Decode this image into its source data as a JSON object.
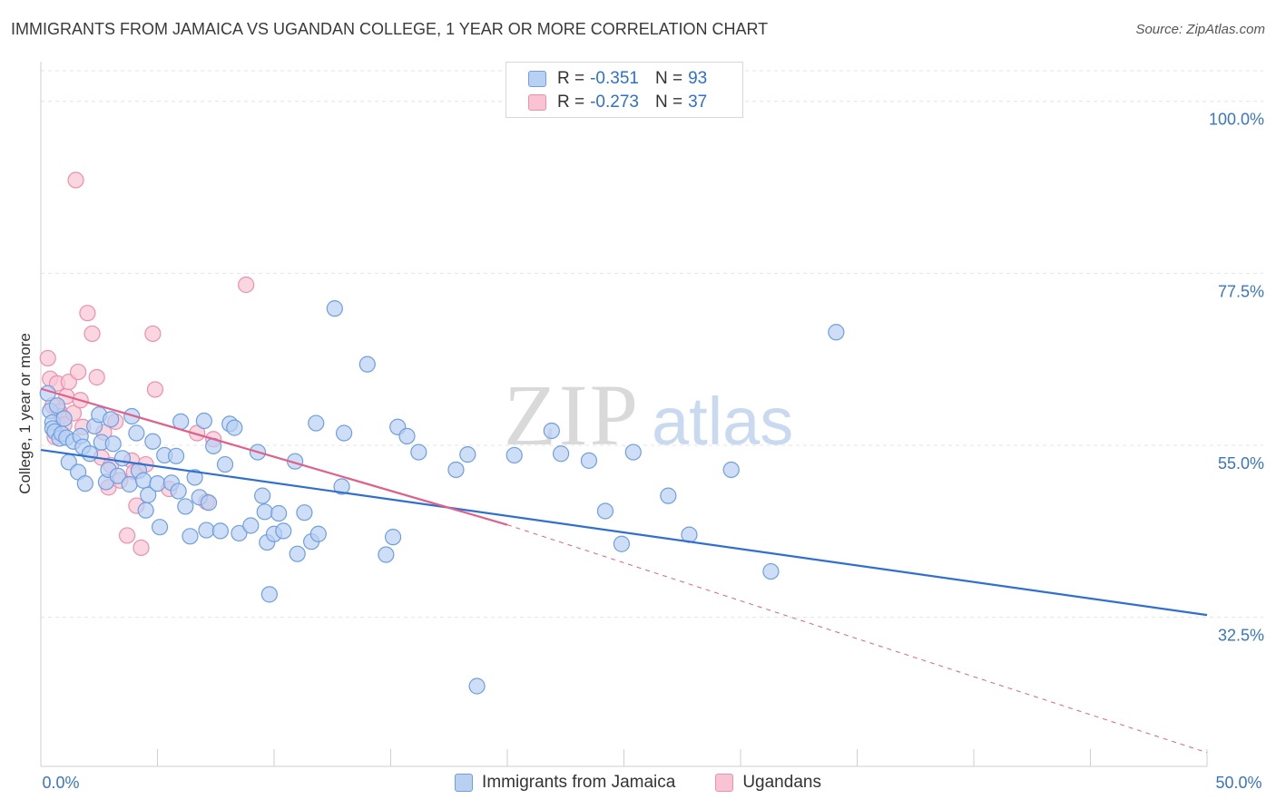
{
  "title": "IMMIGRANTS FROM JAMAICA VS UGANDAN COLLEGE, 1 YEAR OR MORE CORRELATION CHART",
  "source": "Source: ZipAtlas.com",
  "watermark": {
    "zip": "ZIP",
    "atlas": "atlas"
  },
  "legend_top": {
    "rows": [
      {
        "r_label": "R =",
        "r_value": "-0.351",
        "n_label": "N =",
        "n_value": "93"
      },
      {
        "r_label": "R =",
        "r_value": "-0.273",
        "n_label": "N =",
        "n_value": "37"
      }
    ]
  },
  "legend_bottom": {
    "items": [
      {
        "label": "Immigrants from Jamaica"
      },
      {
        "label": "Ugandans"
      }
    ]
  },
  "colors": {
    "blue_fill": "#b8d0f2",
    "blue_stroke": "#6f9fe0",
    "blue_line": "#2f6fd0",
    "pink_fill": "#f8c4d4",
    "pink_stroke": "#ee8fab",
    "pink_line": "#e0608a",
    "tick_text": "#3a75c4",
    "grid": "#e4e4e4"
  },
  "chart_data": {
    "type": "scatter",
    "title": "IMMIGRANTS FROM JAMAICA VS UGANDAN COLLEGE, 1 YEAR OR MORE CORRELATION CHART",
    "xlabel": "",
    "ylabel": "College, 1 year or more",
    "xlim": [
      0,
      50
    ],
    "ylim": [
      13,
      104
    ],
    "x_tick_labels": [
      {
        "value": 0,
        "label": "0.0%"
      },
      {
        "value": 50,
        "label": "50.0%"
      }
    ],
    "y_tick_labels": [
      {
        "value": 100,
        "label": "100.0%"
      },
      {
        "value": 77.5,
        "label": "77.5%"
      },
      {
        "value": 55,
        "label": "55.0%"
      },
      {
        "value": 32.5,
        "label": "32.5%"
      }
    ],
    "series": [
      {
        "name": "Immigrants from Jamaica",
        "r": -0.351,
        "n": 93,
        "trend": {
          "x": [
            0,
            50
          ],
          "y": [
            54.4,
            32.8
          ]
        },
        "points": [
          [
            0.3,
            61.8
          ],
          [
            0.4,
            59.5
          ],
          [
            0.5,
            58.0
          ],
          [
            0.5,
            57.2
          ],
          [
            0.6,
            56.8
          ],
          [
            0.7,
            60.2
          ],
          [
            0.8,
            55.9
          ],
          [
            0.9,
            56.5
          ],
          [
            1.0,
            58.5
          ],
          [
            1.1,
            56.0
          ],
          [
            1.2,
            52.8
          ],
          [
            1.4,
            55.5
          ],
          [
            1.6,
            51.5
          ],
          [
            1.7,
            56.2
          ],
          [
            1.8,
            54.8
          ],
          [
            1.9,
            50.0
          ],
          [
            2.1,
            53.9
          ],
          [
            2.3,
            57.5
          ],
          [
            2.5,
            59.0
          ],
          [
            2.6,
            55.4
          ],
          [
            2.8,
            50.2
          ],
          [
            2.9,
            51.8
          ],
          [
            3.0,
            58.4
          ],
          [
            3.1,
            55.2
          ],
          [
            3.3,
            51.0
          ],
          [
            3.5,
            53.3
          ],
          [
            3.8,
            49.9
          ],
          [
            3.9,
            58.8
          ],
          [
            4.1,
            56.6
          ],
          [
            4.2,
            51.7
          ],
          [
            4.4,
            50.4
          ],
          [
            4.5,
            46.5
          ],
          [
            4.6,
            48.5
          ],
          [
            4.8,
            55.5
          ],
          [
            5.0,
            50.0
          ],
          [
            5.1,
            44.3
          ],
          [
            5.3,
            53.7
          ],
          [
            5.6,
            50.1
          ],
          [
            5.8,
            53.6
          ],
          [
            5.9,
            49.0
          ],
          [
            6.0,
            58.1
          ],
          [
            6.2,
            47.0
          ],
          [
            6.4,
            43.1
          ],
          [
            6.6,
            50.8
          ],
          [
            6.8,
            48.2
          ],
          [
            7.0,
            58.2
          ],
          [
            7.1,
            43.9
          ],
          [
            7.2,
            47.5
          ],
          [
            7.4,
            54.9
          ],
          [
            7.7,
            43.8
          ],
          [
            7.9,
            52.5
          ],
          [
            8.1,
            57.8
          ],
          [
            8.3,
            57.3
          ],
          [
            8.5,
            43.5
          ],
          [
            9.0,
            44.5
          ],
          [
            9.3,
            54.1
          ],
          [
            9.5,
            48.4
          ],
          [
            9.6,
            46.3
          ],
          [
            9.7,
            42.3
          ],
          [
            9.8,
            35.5
          ],
          [
            10.0,
            43.4
          ],
          [
            10.2,
            46.1
          ],
          [
            10.4,
            43.8
          ],
          [
            10.9,
            52.9
          ],
          [
            11.0,
            40.8
          ],
          [
            11.3,
            46.2
          ],
          [
            11.6,
            42.4
          ],
          [
            11.9,
            43.4
          ],
          [
            11.8,
            57.9
          ],
          [
            12.6,
            72.9
          ],
          [
            12.9,
            49.6
          ],
          [
            13.0,
            56.6
          ],
          [
            14.0,
            65.6
          ],
          [
            14.8,
            40.7
          ],
          [
            15.1,
            43.0
          ],
          [
            15.3,
            57.4
          ],
          [
            15.7,
            56.2
          ],
          [
            16.2,
            54.1
          ],
          [
            17.8,
            51.8
          ],
          [
            18.3,
            53.8
          ],
          [
            18.7,
            23.5
          ],
          [
            20.3,
            53.7
          ],
          [
            21.9,
            56.9
          ],
          [
            22.3,
            53.9
          ],
          [
            23.5,
            53.0
          ],
          [
            24.2,
            46.4
          ],
          [
            24.9,
            42.1
          ],
          [
            25.4,
            54.1
          ],
          [
            26.9,
            48.4
          ],
          [
            27.8,
            43.3
          ],
          [
            29.6,
            51.8
          ],
          [
            31.3,
            38.5
          ],
          [
            34.1,
            69.8
          ]
        ]
      },
      {
        "name": "Ugandans",
        "r": -0.273,
        "n": 37,
        "trend": {
          "x": [
            0,
            20
          ],
          "y": [
            62.4,
            44.6
          ],
          "dashed_extension": {
            "x": [
              20,
              50
            ],
            "y": [
              44.6,
              14.8
            ]
          }
        },
        "points": [
          [
            0.3,
            66.4
          ],
          [
            0.4,
            63.7
          ],
          [
            0.5,
            60.2
          ],
          [
            0.6,
            56.1
          ],
          [
            0.7,
            63.1
          ],
          [
            0.8,
            59.4
          ],
          [
            0.9,
            58.8
          ],
          [
            1.0,
            57.7
          ],
          [
            1.1,
            61.4
          ],
          [
            1.2,
            63.3
          ],
          [
            1.4,
            59.2
          ],
          [
            1.5,
            89.7
          ],
          [
            1.6,
            64.6
          ],
          [
            1.7,
            60.9
          ],
          [
            1.8,
            57.4
          ],
          [
            2.0,
            72.3
          ],
          [
            2.2,
            69.6
          ],
          [
            2.4,
            63.9
          ],
          [
            2.6,
            53.4
          ],
          [
            2.7,
            56.7
          ],
          [
            2.9,
            49.5
          ],
          [
            3.0,
            52.4
          ],
          [
            3.2,
            58.1
          ],
          [
            3.4,
            50.4
          ],
          [
            3.7,
            43.2
          ],
          [
            3.9,
            53.0
          ],
          [
            4.0,
            51.5
          ],
          [
            4.1,
            47.1
          ],
          [
            4.3,
            41.6
          ],
          [
            4.5,
            52.5
          ],
          [
            4.8,
            69.6
          ],
          [
            4.9,
            62.3
          ],
          [
            5.5,
            49.3
          ],
          [
            6.7,
            56.6
          ],
          [
            7.1,
            47.6
          ],
          [
            7.4,
            55.8
          ],
          [
            8.8,
            76.0
          ]
        ]
      }
    ],
    "grid": true,
    "legend_position": "top-center"
  }
}
